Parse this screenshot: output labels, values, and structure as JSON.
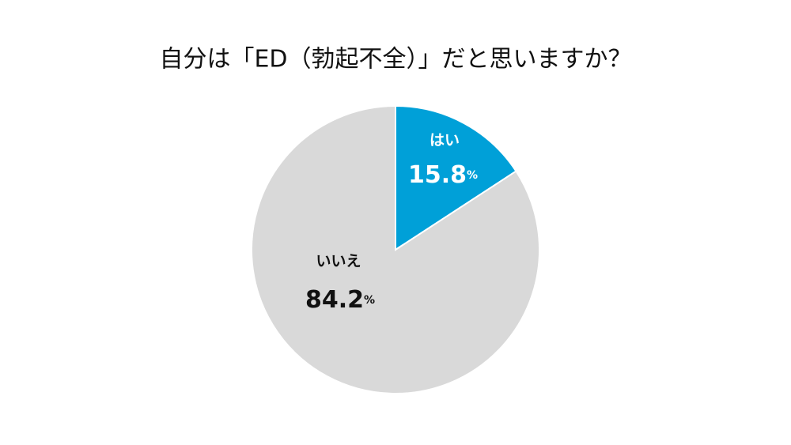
{
  "chart_data": {
    "type": "pie",
    "title": "自分は「ED（勃起不全）」だと思いますか？",
    "categories": [
      "はい",
      "いいえ"
    ],
    "values": [
      15.8,
      84.2
    ],
    "value_labels": [
      "15.8%",
      "84.2%"
    ],
    "colors": [
      "#00a0d8",
      "#d9d9d9"
    ],
    "label_colors": [
      "#ffffff",
      "#111111"
    ]
  }
}
